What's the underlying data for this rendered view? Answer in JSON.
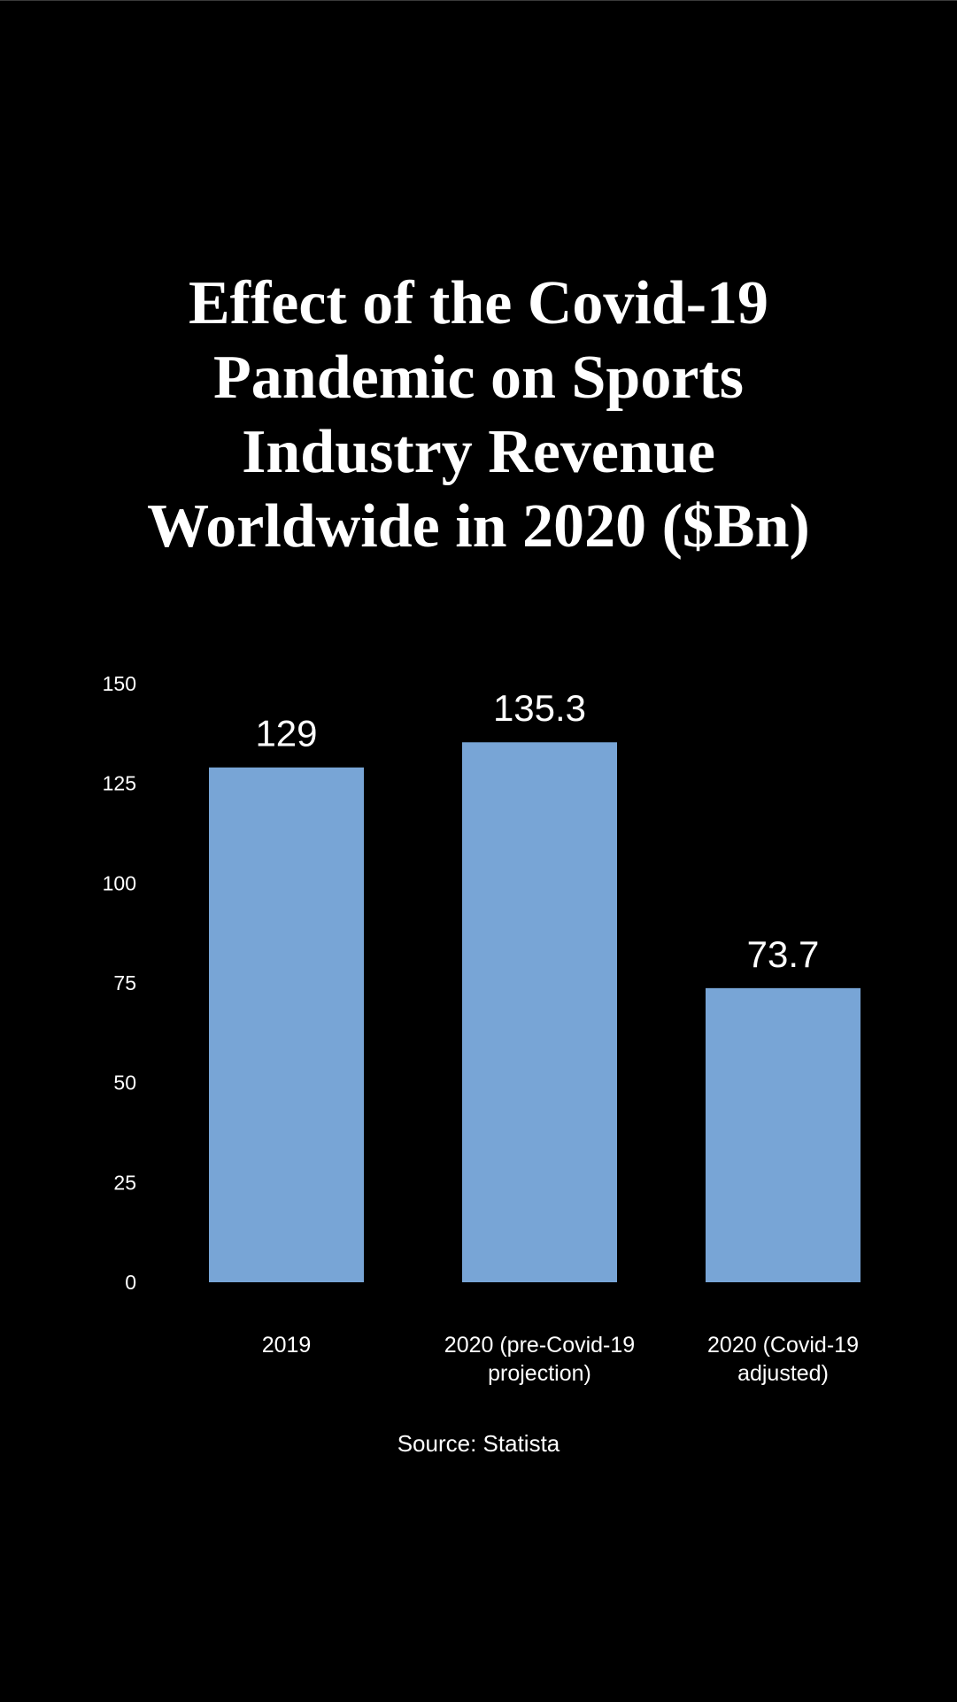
{
  "colors": {
    "background": "#000000",
    "bar": "#78A5D6",
    "text": "#FFFFFF"
  },
  "chart_data": {
    "type": "bar",
    "title": "Effect of the Covid-19 Pandemic on Sports Industry Revenue Worldwide in 2020 ($Bn)",
    "title_lines": [
      "Effect of the Covid-19",
      "Pandemic on Sports",
      "Industry Revenue",
      "Worldwide in 2020 ($Bn)"
    ],
    "categories": [
      "2019",
      "2020 (pre-Covid-19 projection)",
      "2020 (Covid-19 adjusted)"
    ],
    "category_lines": [
      [
        "2019"
      ],
      [
        "2020 (pre-Covid-19",
        "projection)"
      ],
      [
        "2020 (Covid-19",
        "adjusted)"
      ]
    ],
    "values": [
      129,
      135.3,
      73.7
    ],
    "data_labels": [
      "129",
      "135.3",
      "73.7"
    ],
    "ylim": [
      0,
      150
    ],
    "yticks": [
      0,
      25,
      50,
      75,
      100,
      125,
      150
    ],
    "grid": false,
    "xlabel": "",
    "ylabel": "",
    "source": "Source: Statista"
  }
}
